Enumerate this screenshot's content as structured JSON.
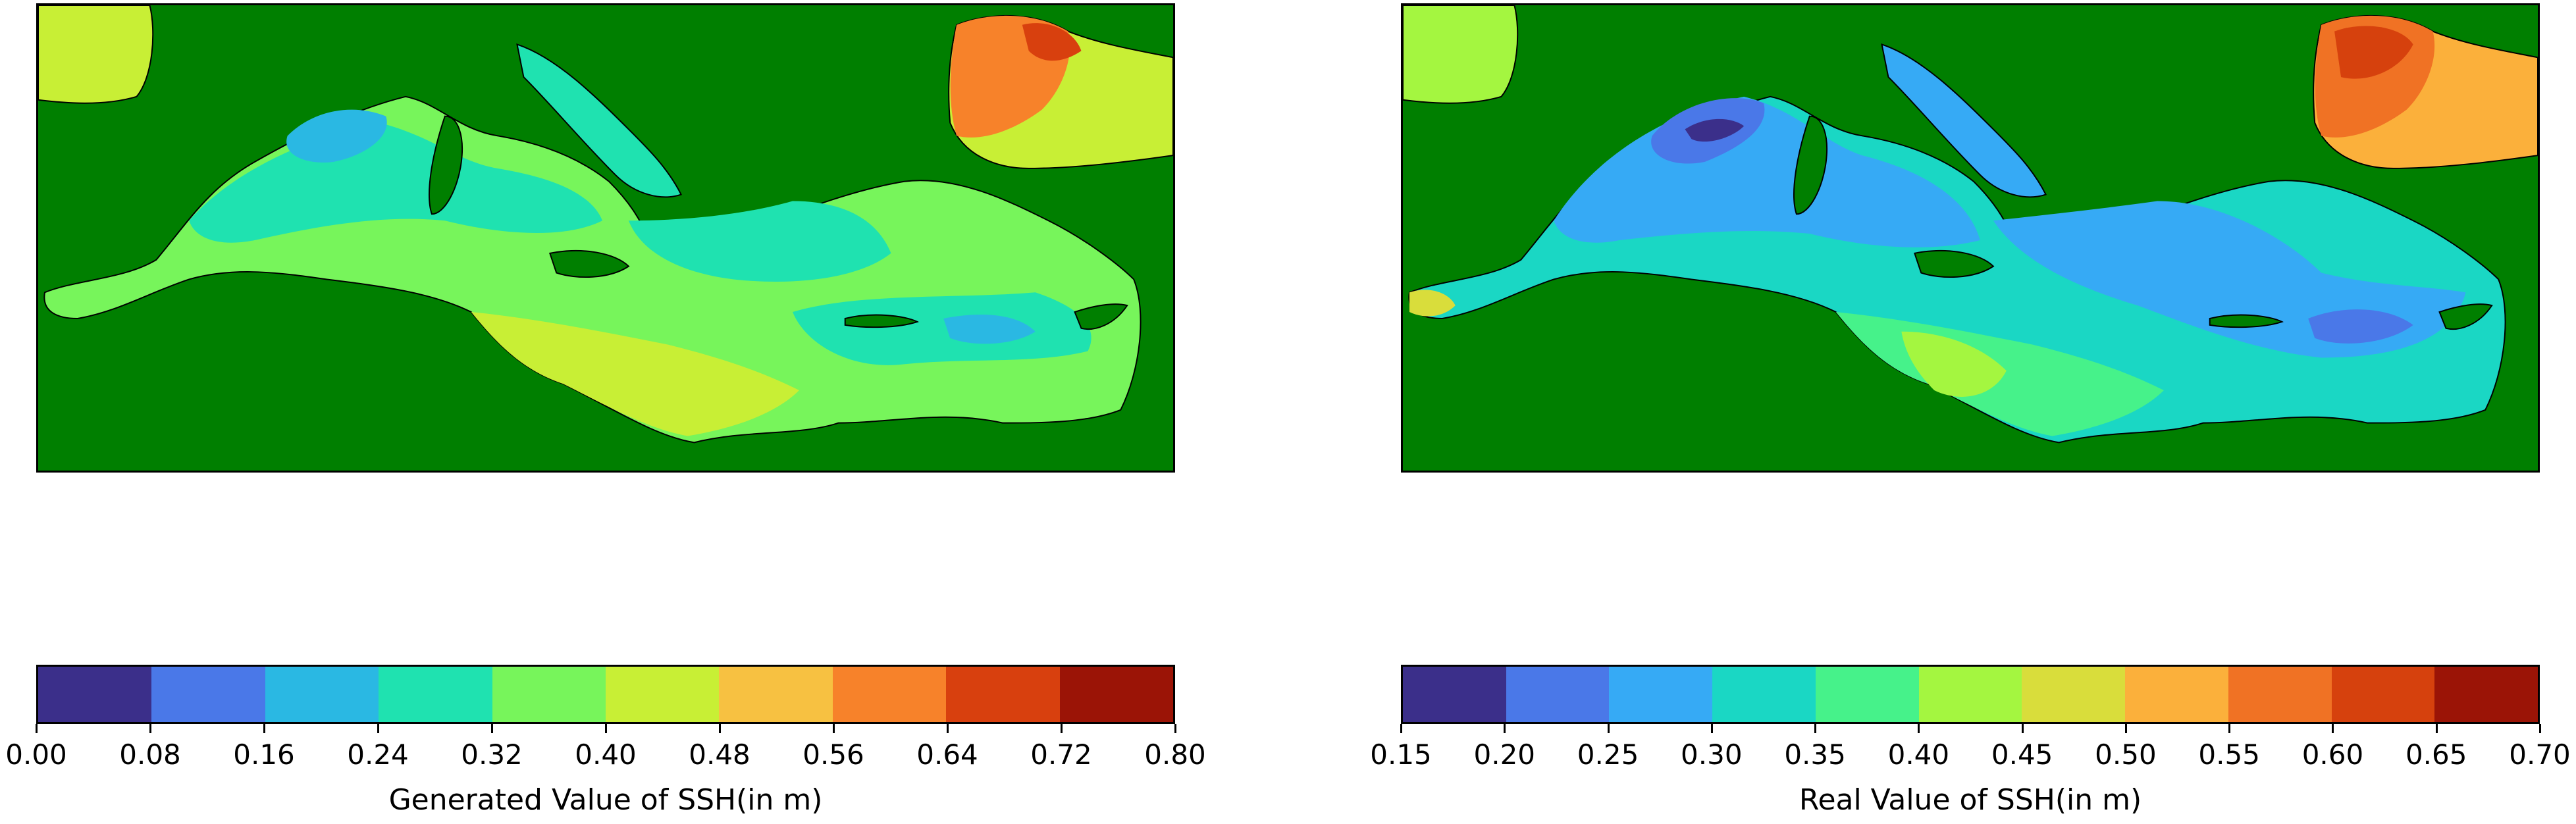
{
  "panels": [
    {
      "colorbar": {
        "label": "Generated Value of SSH(in m)",
        "ticks": [
          "0.00",
          "0.08",
          "0.16",
          "0.24",
          "0.32",
          "0.40",
          "0.48",
          "0.56",
          "0.64",
          "0.72",
          "0.80"
        ],
        "colors": [
          "#3b2f8a",
          "#4a78e8",
          "#2ab8e3",
          "#1fe2b0",
          "#77f55b",
          "#c8ef35",
          "#f7c141",
          "#f7822a",
          "#d8400e",
          "#9b1406"
        ]
      }
    },
    {
      "colorbar": {
        "label": "Real Value of SSH(in m)",
        "ticks": [
          "0.15",
          "0.20",
          "0.25",
          "0.30",
          "0.35",
          "0.40",
          "0.45",
          "0.50",
          "0.55",
          "0.60",
          "0.65",
          "0.70"
        ],
        "colors": [
          "#3b2f8a",
          "#4a78e8",
          "#36aaf5",
          "#1ad7c4",
          "#46f28a",
          "#a4f640",
          "#d9dd3b",
          "#fbb03b",
          "#f07224",
          "#d6410d",
          "#9b1406"
        ]
      }
    }
  ],
  "land_color": "#007f00"
}
